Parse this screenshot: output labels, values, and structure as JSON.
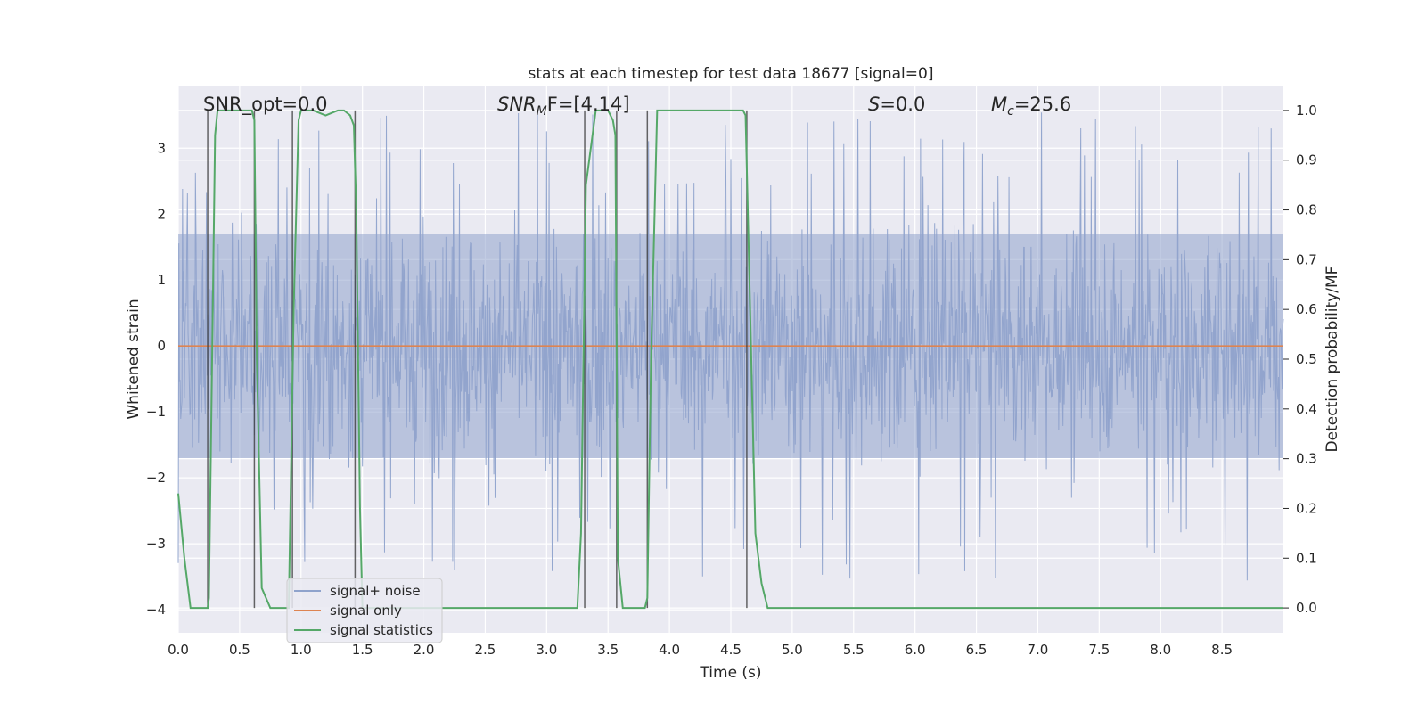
{
  "chart_data": {
    "type": "line",
    "title": "stats at each timestep for test data 18677 [signal=0]",
    "xlabel": "Time (s)",
    "ylabel_left": "Whitened strain",
    "ylabel_right": "Detection probability/MF",
    "xlim": [
      0.0,
      9.0
    ],
    "ylim_left": [
      -4.35,
      3.95
    ],
    "ylim_right": [
      -0.05,
      1.05
    ],
    "xticks": [
      0.0,
      0.5,
      1.0,
      1.5,
      2.0,
      2.5,
      3.0,
      3.5,
      4.0,
      4.5,
      5.0,
      5.5,
      6.0,
      6.5,
      7.0,
      7.5,
      8.0,
      8.5
    ],
    "xtick_labels": [
      "0.0",
      "0.5",
      "1.0",
      "1.5",
      "2.0",
      "2.5",
      "3.0",
      "3.5",
      "4.0",
      "4.5",
      "5.0",
      "5.5",
      "6.0",
      "6.5",
      "7.0",
      "7.5",
      "8.0",
      "8.5"
    ],
    "yticks_left": [
      -4,
      -3,
      -2,
      -1,
      0,
      1,
      2,
      3
    ],
    "ytick_labels_left": [
      "−4",
      "−3",
      "−2",
      "−1",
      "0",
      "1",
      "2",
      "3"
    ],
    "yticks_right": [
      0.0,
      0.1,
      0.2,
      0.3,
      0.4,
      0.5,
      0.6,
      0.7,
      0.8,
      0.9,
      1.0
    ],
    "ytick_labels_right": [
      "0.0",
      "0.1",
      "0.2",
      "0.3",
      "0.4",
      "0.5",
      "0.6",
      "0.7",
      "0.8",
      "0.9",
      "1.0"
    ],
    "annotations": [
      {
        "id": "snr-opt",
        "text": "SNR_opt=0.0",
        "x": 0.19
      },
      {
        "id": "snr-mf",
        "base": "SNR",
        "sub": "M",
        "rest": "F=[4.14]",
        "x": 2.6
      },
      {
        "id": "s-stat",
        "italic": "S",
        "rest": "=0.0",
        "x": 5.6
      },
      {
        "id": "mc",
        "italic": "M",
        "sub": "c",
        "rest": "=25.6",
        "x": 6.6
      }
    ],
    "legend": [
      {
        "name": "signal+ noise",
        "color": "#8fa3cc"
      },
      {
        "name": "signal only",
        "color": "#dd8452"
      },
      {
        "name": "signal statistics",
        "color": "#55a868"
      }
    ],
    "series": [
      {
        "name": "signal+ noise",
        "color": "#8fa3cc",
        "description": "whitened strain noise, roughly within -2.5..2.5 with spikes to about ±3.6",
        "dense_band": [
          -1.7,
          1.7
        ],
        "typical_spike_max": 3.6,
        "typical_spike_min": -3.7
      },
      {
        "name": "signal only",
        "color": "#dd8452",
        "x": [
          0.0,
          9.0
        ],
        "y": [
          0.0,
          0.0
        ]
      },
      {
        "name": "signal statistics",
        "color": "#55a868",
        "axis": "right",
        "x": [
          0.0,
          0.05,
          0.1,
          0.24,
          0.25,
          0.3,
          0.32,
          0.36,
          0.4,
          0.5,
          0.6,
          0.62,
          0.64,
          0.68,
          0.75,
          0.9,
          0.94,
          0.98,
          1.0,
          1.1,
          1.2,
          1.3,
          1.35,
          1.4,
          1.43,
          1.45,
          1.48,
          1.5,
          1.6,
          2.0,
          2.5,
          3.0,
          3.25,
          3.28,
          3.32,
          3.4,
          3.5,
          3.54,
          3.56,
          3.58,
          3.62,
          3.8,
          3.82,
          3.85,
          3.9,
          4.0,
          4.5,
          4.6,
          4.62,
          4.7,
          4.75,
          4.8,
          5.0,
          5.5,
          5.7,
          5.8,
          6.0,
          6.5,
          7.0,
          7.5,
          8.0,
          8.5,
          9.0
        ],
        "y": [
          0.23,
          0.1,
          0.0,
          0.0,
          0.02,
          0.95,
          1.0,
          1.0,
          1.0,
          1.0,
          1.0,
          0.98,
          0.5,
          0.04,
          0.0,
          0.0,
          0.6,
          0.98,
          1.0,
          1.0,
          0.99,
          1.0,
          1.0,
          0.99,
          0.97,
          0.8,
          0.2,
          0.0,
          0.0,
          0.0,
          0.0,
          0.0,
          0.0,
          0.15,
          0.85,
          1.0,
          1.0,
          0.98,
          0.95,
          0.1,
          0.0,
          0.0,
          0.02,
          0.5,
          1.0,
          1.0,
          1.0,
          1.0,
          0.99,
          0.15,
          0.05,
          0.0,
          0.0,
          0.0,
          0.0,
          0.0,
          0.0,
          0.0,
          0.0,
          0.0,
          0.0,
          0.0,
          0.0
        ]
      }
    ],
    "vertical_markers": [
      {
        "x": 0.24,
        "y_from": 0.0,
        "y_to": 1.0
      },
      {
        "x": 0.62,
        "y_from": 0.0,
        "y_to": 1.0
      },
      {
        "x": 0.93,
        "y_from": 0.0,
        "y_to": 1.0
      },
      {
        "x": 1.44,
        "y_from": 0.0,
        "y_to": 1.0
      },
      {
        "x": 3.31,
        "y_from": 0.0,
        "y_to": 1.0
      },
      {
        "x": 3.57,
        "y_from": 0.0,
        "y_to": 1.0
      },
      {
        "x": 3.82,
        "y_from": 0.0,
        "y_to": 1.0
      },
      {
        "x": 4.63,
        "y_from": 0.0,
        "y_to": 1.0
      }
    ],
    "grid": true,
    "legend_position": "lower-left"
  }
}
